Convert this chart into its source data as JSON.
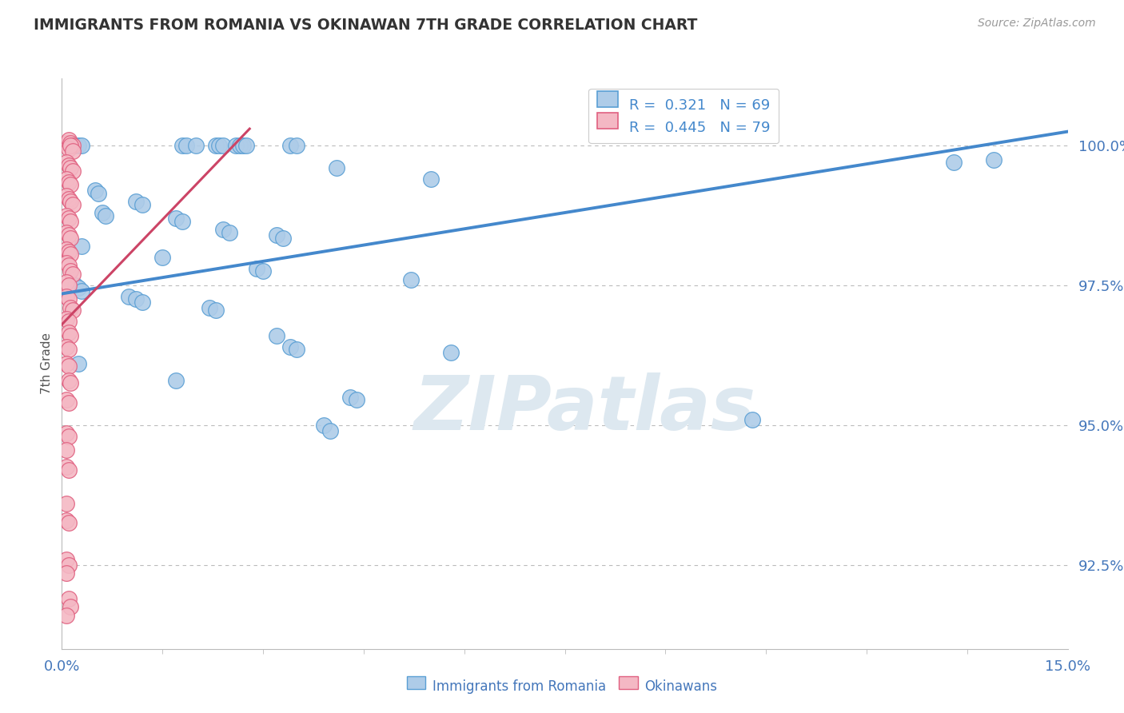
{
  "title": "IMMIGRANTS FROM ROMANIA VS OKINAWAN 7TH GRADE CORRELATION CHART",
  "source": "Source: ZipAtlas.com",
  "ylabel_label": "7th Grade",
  "xmin": 0.0,
  "xmax": 15.0,
  "ymin": 91.0,
  "ymax": 101.2,
  "yticks": [
    100.0,
    97.5,
    95.0,
    92.5
  ],
  "xticks": [
    0.0,
    15.0
  ],
  "legend_blue_R": "R =  0.321",
  "legend_blue_N": "N = 69",
  "legend_pink_R": "R =  0.445",
  "legend_pink_N": "N = 79",
  "blue_color": "#aecce8",
  "blue_edge_color": "#5a9fd4",
  "pink_color": "#f4b8c4",
  "pink_edge_color": "#e06080",
  "blue_line_color": "#4488cc",
  "pink_line_color": "#cc4466",
  "grid_color": "#bbbbbb",
  "title_color": "#333333",
  "axis_tick_color": "#4477bb",
  "watermark_text": "ZIPatlas",
  "watermark_color": "#dde8f0",
  "blue_scatter": [
    [
      0.15,
      100.0
    ],
    [
      0.2,
      100.0
    ],
    [
      0.25,
      100.0
    ],
    [
      0.3,
      100.0
    ],
    [
      1.8,
      100.0
    ],
    [
      1.85,
      100.0
    ],
    [
      2.0,
      100.0
    ],
    [
      2.3,
      100.0
    ],
    [
      2.35,
      100.0
    ],
    [
      2.4,
      100.0
    ],
    [
      2.6,
      100.0
    ],
    [
      2.65,
      100.0
    ],
    [
      2.7,
      100.0
    ],
    [
      2.75,
      100.0
    ],
    [
      3.4,
      100.0
    ],
    [
      3.5,
      100.0
    ],
    [
      4.1,
      99.6
    ],
    [
      5.5,
      99.4
    ],
    [
      0.5,
      99.2
    ],
    [
      0.55,
      99.15
    ],
    [
      1.1,
      99.0
    ],
    [
      1.2,
      98.95
    ],
    [
      0.6,
      98.8
    ],
    [
      0.65,
      98.75
    ],
    [
      1.7,
      98.7
    ],
    [
      1.8,
      98.65
    ],
    [
      2.4,
      98.5
    ],
    [
      2.5,
      98.45
    ],
    [
      3.2,
      98.4
    ],
    [
      3.3,
      98.35
    ],
    [
      0.3,
      98.2
    ],
    [
      1.5,
      98.0
    ],
    [
      2.9,
      97.8
    ],
    [
      3.0,
      97.75
    ],
    [
      5.2,
      97.6
    ],
    [
      0.2,
      97.5
    ],
    [
      0.25,
      97.45
    ],
    [
      0.3,
      97.4
    ],
    [
      1.0,
      97.3
    ],
    [
      1.1,
      97.25
    ],
    [
      1.2,
      97.2
    ],
    [
      2.2,
      97.1
    ],
    [
      2.3,
      97.05
    ],
    [
      3.2,
      96.6
    ],
    [
      3.4,
      96.4
    ],
    [
      3.5,
      96.35
    ],
    [
      5.8,
      96.3
    ],
    [
      0.25,
      96.1
    ],
    [
      1.7,
      95.8
    ],
    [
      4.3,
      95.5
    ],
    [
      4.4,
      95.45
    ],
    [
      3.9,
      95.0
    ],
    [
      4.0,
      94.9
    ],
    [
      10.3,
      95.1
    ],
    [
      13.3,
      99.7
    ],
    [
      13.9,
      99.75
    ]
  ],
  "pink_scatter": [
    [
      0.07,
      100.05
    ],
    [
      0.1,
      100.1
    ],
    [
      0.13,
      100.05
    ],
    [
      0.16,
      100.0
    ],
    [
      0.1,
      99.95
    ],
    [
      0.13,
      100.0
    ],
    [
      0.16,
      99.9
    ],
    [
      0.07,
      99.7
    ],
    [
      0.1,
      99.65
    ],
    [
      0.13,
      99.6
    ],
    [
      0.16,
      99.55
    ],
    [
      0.07,
      99.4
    ],
    [
      0.1,
      99.35
    ],
    [
      0.13,
      99.3
    ],
    [
      0.07,
      99.1
    ],
    [
      0.1,
      99.05
    ],
    [
      0.13,
      99.0
    ],
    [
      0.16,
      98.95
    ],
    [
      0.07,
      98.75
    ],
    [
      0.1,
      98.7
    ],
    [
      0.13,
      98.65
    ],
    [
      0.07,
      98.45
    ],
    [
      0.1,
      98.4
    ],
    [
      0.13,
      98.35
    ],
    [
      0.07,
      98.15
    ],
    [
      0.1,
      98.1
    ],
    [
      0.13,
      98.05
    ],
    [
      0.07,
      97.9
    ],
    [
      0.1,
      97.85
    ],
    [
      0.13,
      97.75
    ],
    [
      0.16,
      97.7
    ],
    [
      0.07,
      97.55
    ],
    [
      0.1,
      97.5
    ],
    [
      0.07,
      97.3
    ],
    [
      0.1,
      97.25
    ],
    [
      0.13,
      97.1
    ],
    [
      0.16,
      97.05
    ],
    [
      0.07,
      96.9
    ],
    [
      0.1,
      96.85
    ],
    [
      0.1,
      96.65
    ],
    [
      0.13,
      96.6
    ],
    [
      0.07,
      96.4
    ],
    [
      0.1,
      96.35
    ],
    [
      0.07,
      96.1
    ],
    [
      0.1,
      96.05
    ],
    [
      0.1,
      95.8
    ],
    [
      0.13,
      95.75
    ],
    [
      0.07,
      95.45
    ],
    [
      0.1,
      95.4
    ],
    [
      0.07,
      94.85
    ],
    [
      0.1,
      94.8
    ],
    [
      0.07,
      94.55
    ],
    [
      0.07,
      94.25
    ],
    [
      0.1,
      94.2
    ],
    [
      0.07,
      93.6
    ],
    [
      0.07,
      93.3
    ],
    [
      0.1,
      93.25
    ],
    [
      0.07,
      92.6
    ],
    [
      0.1,
      92.5
    ],
    [
      0.07,
      92.35
    ],
    [
      0.1,
      91.9
    ],
    [
      0.13,
      91.75
    ],
    [
      0.07,
      91.6
    ]
  ],
  "blue_trendline_x": [
    0.0,
    15.0
  ],
  "blue_trendline_y": [
    97.35,
    100.25
  ],
  "pink_trendline_x": [
    0.0,
    2.8
  ],
  "pink_trendline_y": [
    96.8,
    100.3
  ]
}
